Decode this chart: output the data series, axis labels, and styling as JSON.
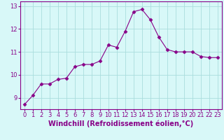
{
  "x": [
    0,
    1,
    2,
    3,
    4,
    5,
    6,
    7,
    8,
    9,
    10,
    11,
    12,
    13,
    14,
    15,
    16,
    17,
    18,
    19,
    20,
    21,
    22,
    23
  ],
  "y": [
    8.7,
    9.1,
    9.6,
    9.6,
    9.8,
    9.85,
    10.35,
    10.45,
    10.45,
    10.6,
    11.3,
    11.2,
    11.9,
    12.75,
    12.85,
    12.4,
    11.65,
    11.1,
    11.0,
    11.0,
    11.0,
    10.8,
    10.75,
    10.75
  ],
  "line_color": "#880088",
  "marker": "D",
  "marker_size": 2.5,
  "bg_color": "#d8f8f8",
  "grid_color": "#aadddd",
  "xlabel": "Windchill (Refroidissement éolien,°C)",
  "xlim": [
    -0.5,
    23.5
  ],
  "ylim": [
    8.5,
    13.2
  ],
  "yticks": [
    9,
    10,
    11,
    12,
    13
  ],
  "xticks": [
    0,
    1,
    2,
    3,
    4,
    5,
    6,
    7,
    8,
    9,
    10,
    11,
    12,
    13,
    14,
    15,
    16,
    17,
    18,
    19,
    20,
    21,
    22,
    23
  ],
  "tick_fontsize": 6,
  "xlabel_fontsize": 7,
  "spine_color": "#880088",
  "tick_color": "#880088"
}
